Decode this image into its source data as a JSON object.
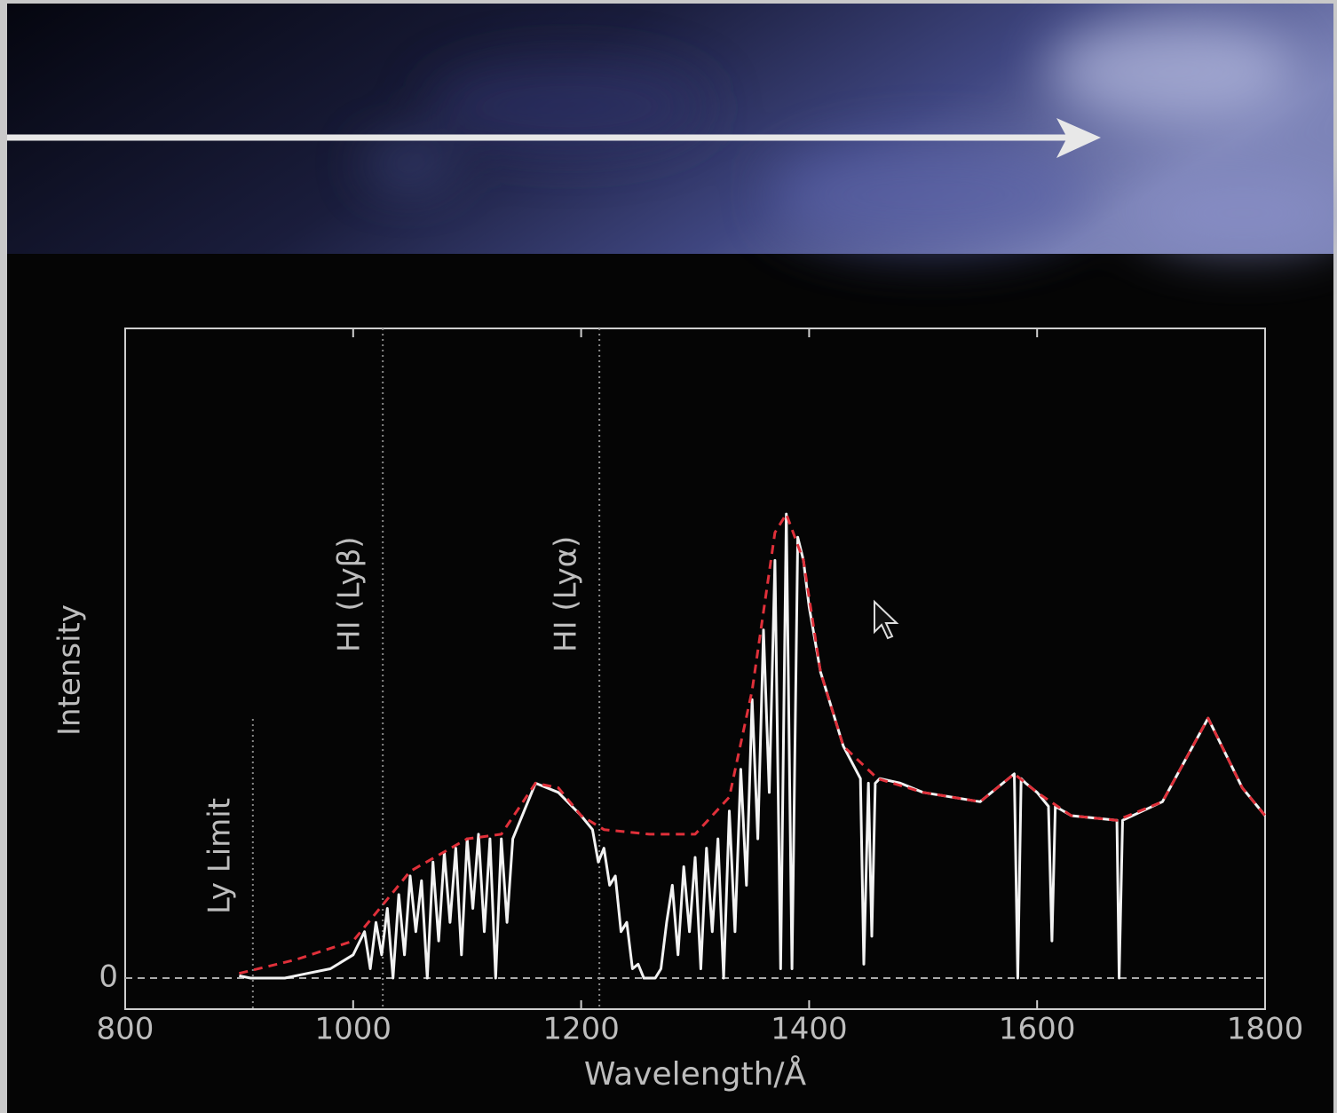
{
  "chart_data": {
    "type": "line",
    "xlabel": "Wavelength/Å",
    "ylabel": "Intensity",
    "xlim": [
      800,
      1800
    ],
    "xticks": [
      800,
      1000,
      1200,
      1400,
      1600,
      1800
    ],
    "ylim": [
      -0.067,
      1.4
    ],
    "yticks": [
      0
    ],
    "annotations": [
      {
        "text": "Ly Limit",
        "x": 912
      },
      {
        "text": "HI (Lyβ)",
        "x": 1026
      },
      {
        "text": "HI (Lyα)",
        "x": 1216
      }
    ],
    "series": [
      {
        "color": "#f2f2f2",
        "x": [
          900,
          910,
          920,
          940,
          960,
          980,
          1000,
          1010,
          1015,
          1020,
          1025,
          1030,
          1035,
          1040,
          1045,
          1050,
          1055,
          1060,
          1065,
          1070,
          1075,
          1080,
          1085,
          1090,
          1095,
          1100,
          1105,
          1110,
          1115,
          1120,
          1125,
          1130,
          1135,
          1140,
          1150,
          1160,
          1170,
          1180,
          1200,
          1210,
          1215,
          1220,
          1225,
          1230,
          1235,
          1240,
          1245,
          1250,
          1255,
          1260,
          1265,
          1270,
          1275,
          1280,
          1285,
          1290,
          1295,
          1300,
          1305,
          1310,
          1315,
          1320,
          1325,
          1330,
          1335,
          1340,
          1345,
          1350,
          1355,
          1360,
          1365,
          1370,
          1375,
          1380,
          1385,
          1390,
          1395,
          1400,
          1410,
          1430,
          1445,
          1448,
          1452,
          1455,
          1458,
          1462,
          1480,
          1500,
          1550,
          1580,
          1583,
          1586,
          1590,
          1600,
          1610,
          1613,
          1616,
          1630,
          1670,
          1672,
          1675,
          1710,
          1750,
          1780,
          1800
        ],
        "values": [
          0.005,
          0,
          0,
          0,
          0.01,
          0.02,
          0.05,
          0.1,
          0.02,
          0.12,
          0.05,
          0.15,
          0,
          0.18,
          0.05,
          0.22,
          0.1,
          0.21,
          0,
          0.25,
          0.08,
          0.27,
          0.12,
          0.28,
          0.05,
          0.3,
          0.15,
          0.31,
          0.1,
          0.3,
          0,
          0.3,
          0.12,
          0.3,
          0.36,
          0.42,
          0.41,
          0.4,
          0.35,
          0.32,
          0.25,
          0.28,
          0.2,
          0.22,
          0.1,
          0.12,
          0.02,
          0.03,
          0,
          0,
          0,
          0.02,
          0.12,
          0.2,
          0.05,
          0.24,
          0.1,
          0.26,
          0.02,
          0.28,
          0.1,
          0.3,
          0,
          0.36,
          0.1,
          0.45,
          0.2,
          0.6,
          0.3,
          0.75,
          0.4,
          0.9,
          0.02,
          1.0,
          0.02,
          0.95,
          0.9,
          0.8,
          0.66,
          0.5,
          0.43,
          0.03,
          0.42,
          0.09,
          0.42,
          0.43,
          0.42,
          0.4,
          0.38,
          0.44,
          0,
          0.43,
          0.42,
          0.4,
          0.37,
          0.08,
          0.37,
          0.35,
          0.34,
          0,
          0.34,
          0.38,
          0.56,
          0.41,
          0.35
        ]
      },
      {
        "color": "#e0303a",
        "dashed": true,
        "x": [
          900,
          950,
          1000,
          1050,
          1100,
          1130,
          1160,
          1180,
          1200,
          1220,
          1260,
          1300,
          1330,
          1350,
          1370,
          1380,
          1395,
          1410,
          1430,
          1460,
          1500,
          1550,
          1580,
          1600,
          1630,
          1670,
          1710,
          1750,
          1780,
          1800
        ],
        "values": [
          0.01,
          0.04,
          0.08,
          0.23,
          0.3,
          0.31,
          0.42,
          0.41,
          0.35,
          0.32,
          0.31,
          0.31,
          0.39,
          0.62,
          0.96,
          1.0,
          0.9,
          0.66,
          0.5,
          0.43,
          0.4,
          0.38,
          0.44,
          0.4,
          0.35,
          0.34,
          0.38,
          0.56,
          0.41,
          0.35
        ]
      }
    ]
  }
}
